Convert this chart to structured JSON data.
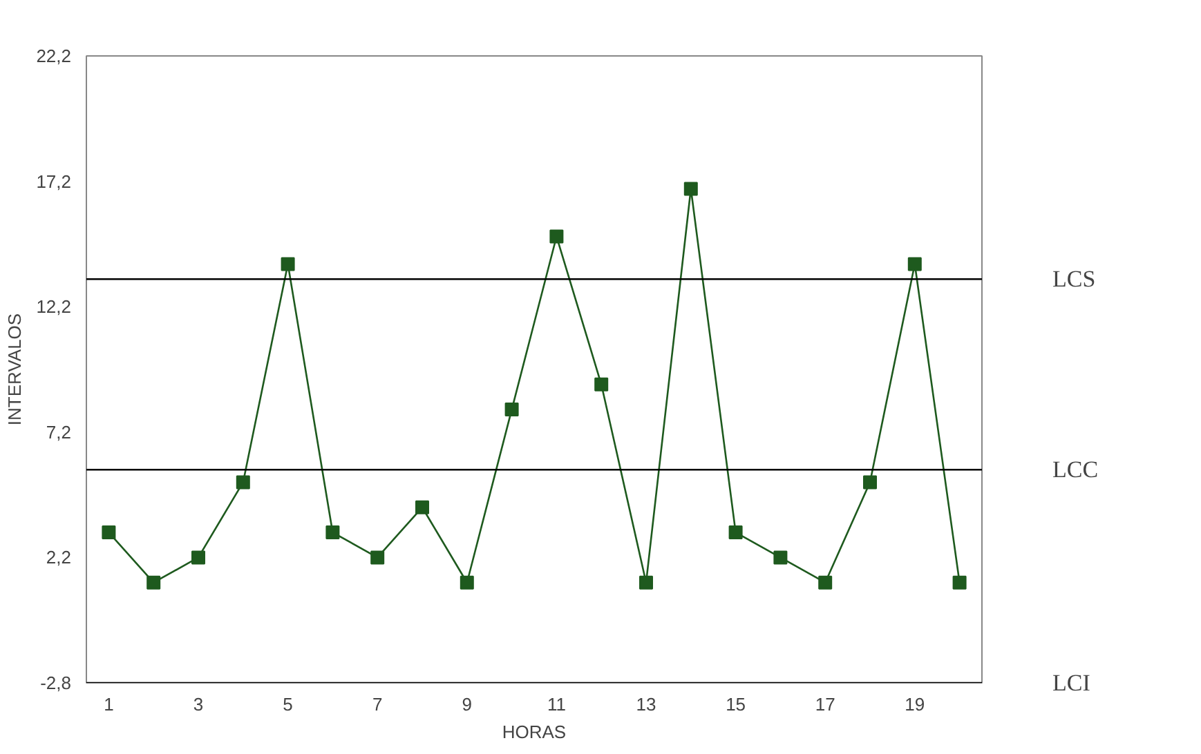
{
  "chart_data": {
    "type": "line",
    "xlabel": "HORAS",
    "ylabel": "INTERVALOS",
    "x": [
      1,
      2,
      3,
      4,
      5,
      6,
      7,
      8,
      9,
      10,
      11,
      12,
      13,
      14,
      15,
      16,
      17,
      18,
      19,
      20
    ],
    "series": [
      {
        "color": "#1e5a1e",
        "values": [
          3.2,
          1.2,
          2.2,
          5.2,
          13.9,
          3.2,
          2.2,
          4.2,
          1.2,
          8.1,
          15.0,
          9.1,
          1.2,
          16.9,
          3.2,
          2.2,
          1.2,
          5.2,
          13.9,
          1.2
        ]
      }
    ],
    "marker": "square",
    "line_style": "solid",
    "grid": false,
    "xlim": [
      0.5,
      20.5
    ],
    "xticks": [
      1,
      3,
      5,
      7,
      9,
      11,
      13,
      15,
      17,
      19
    ],
    "ylim": [
      -2.8,
      22.2
    ],
    "yticks": [
      {
        "value": -2.8,
        "label": "-2,8"
      },
      {
        "value": 2.2,
        "label": "2,2"
      },
      {
        "value": 7.2,
        "label": "7,2"
      },
      {
        "value": 12.2,
        "label": "12,2"
      },
      {
        "value": 17.2,
        "label": "17,2"
      },
      {
        "value": 22.2,
        "label": "22,2"
      }
    ],
    "ref_lines": [
      {
        "axis": "y",
        "value": 13.3,
        "label": "LCS",
        "color": "#000000"
      },
      {
        "axis": "y",
        "value": 5.7,
        "label": "LCC",
        "color": "#000000"
      },
      {
        "axis": "y",
        "value": -2.8,
        "label": "LCI",
        "color": "#000000"
      }
    ]
  }
}
